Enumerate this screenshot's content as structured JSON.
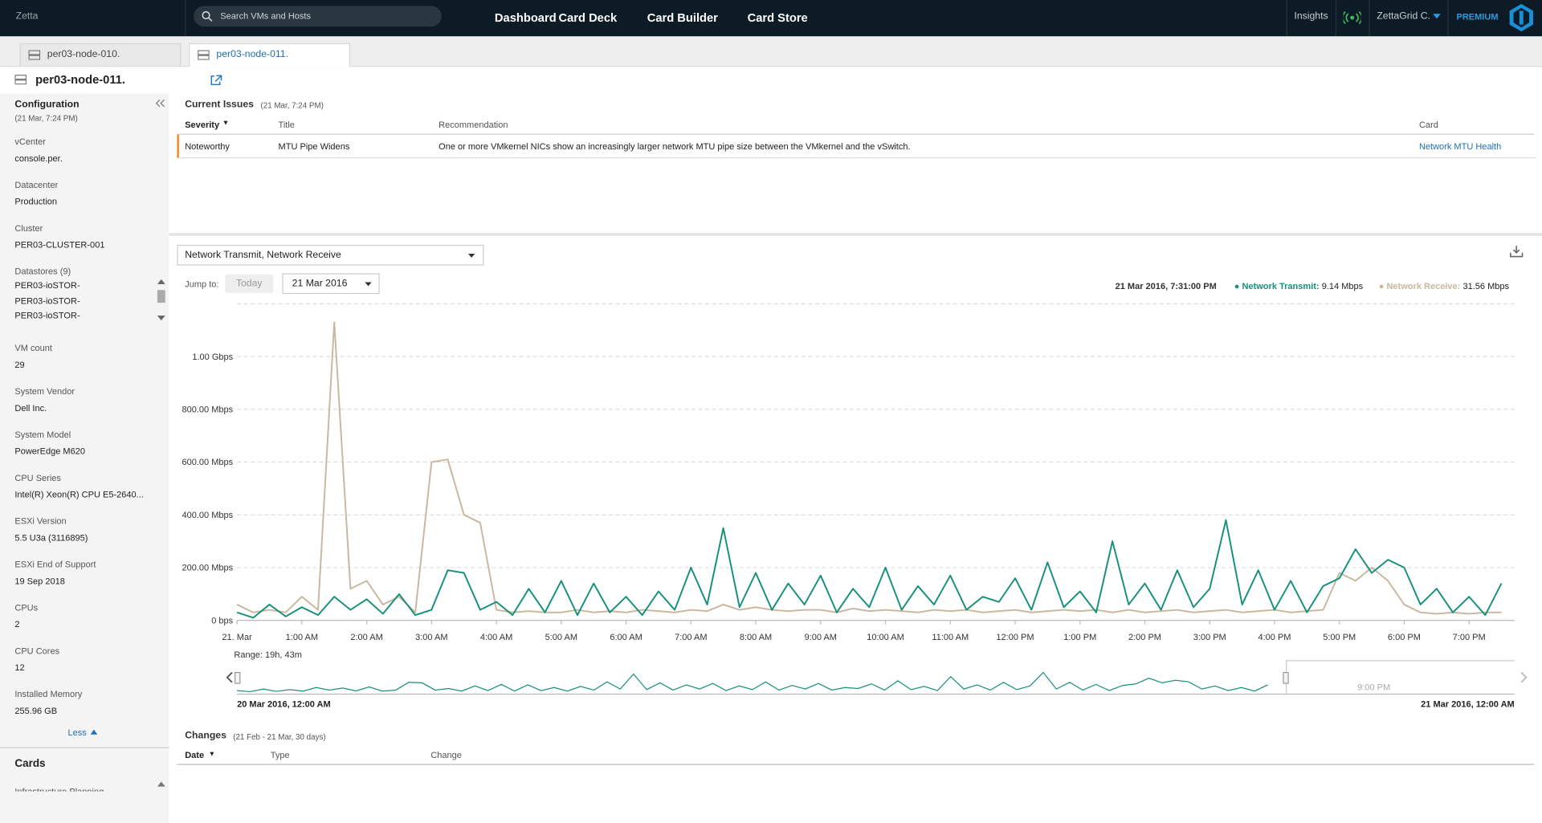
{
  "nav": {
    "brand": "Zetta",
    "search": "Search VMs and Hosts",
    "links": [
      "Dashboard",
      "Card Deck",
      "Card Builder",
      "Card Store"
    ],
    "insights": "Insights",
    "user": "ZettaGrid C.",
    "plan": "PREMIUM"
  },
  "tabs": [
    "per03-node-010.",
    "per03-node-011."
  ],
  "host": "per03-node-011.",
  "sidebar": {
    "title": "Configuration",
    "timestamp": "(21 Mar, 7:24 PM)",
    "fields": [
      {
        "label": "vCenter",
        "value": "console.per."
      },
      {
        "label": "Datacenter",
        "value": "Production"
      },
      {
        "label": "Cluster",
        "value": "PER03-CLUSTER-001"
      },
      {
        "label": "Datastores (9)",
        "items": [
          "PER03-ioSTOR-",
          "PER03-ioSTOR-",
          "PER03-ioSTOR-"
        ]
      },
      {
        "label": "VM count",
        "value": "29"
      },
      {
        "label": "System Vendor",
        "value": "Dell Inc."
      },
      {
        "label": "System Model",
        "value": "PowerEdge M620"
      },
      {
        "label": "CPU Series",
        "value": "Intel(R) Xeon(R) CPU E5-2640..."
      },
      {
        "label": "ESXi Version",
        "value": "5.5 U3a (3116895)"
      },
      {
        "label": "ESXi End of Support",
        "value": "19 Sep 2018"
      },
      {
        "label": "CPUs",
        "value": "2"
      },
      {
        "label": "CPU Cores",
        "value": "12"
      },
      {
        "label": "Installed Memory",
        "value": "255.96 GB"
      }
    ],
    "less": "Less",
    "cards_title": "Cards",
    "cards_item": "Infrastructure Planning"
  },
  "issues": {
    "title": "Current Issues",
    "timestamp": "(21 Mar, 7:24 PM)",
    "columns": [
      "Severity",
      "Title",
      "Recommendation",
      "Card"
    ],
    "rows": [
      [
        "Noteworthy",
        "MTU Pipe Widens",
        "One or more VMkernel NICs show an increasingly larger network MTU pipe size between the VMkernel and the vSwitch.",
        "Network MTU Health"
      ]
    ]
  },
  "metric_select": "Network Transmit, Network Receive",
  "jump_to": "Jump to:",
  "today": "Today",
  "date": "21 Mar 2016",
  "tooltip": {
    "time": "21 Mar 2016, 7:31:00 PM",
    "items": [
      {
        "label": "Network Transmit:",
        "value": "9.14 Mbps"
      },
      {
        "label": "Network Receive:",
        "value": "31.56 Mbps"
      }
    ]
  },
  "navigator": {
    "range": "Range: 19h, 43m",
    "start": "20 Mar 2016, 12:00 AM",
    "end": "21 Mar 2016, 12:00 AM",
    "tick": "9:00 PM"
  },
  "changes": {
    "title": "Changes",
    "timestamp": "(21 Feb - 21 Mar, 30 days)",
    "columns": [
      "Date",
      "Type",
      "Change"
    ]
  },
  "chart_data": {
    "type": "line",
    "x": [
      0,
      0.25,
      0.5,
      0.75,
      1,
      1.25,
      1.5,
      1.75,
      2,
      2.25,
      2.5,
      2.75,
      3,
      3.25,
      3.5,
      3.75,
      4,
      4.25,
      4.5,
      4.75,
      5,
      5.25,
      5.5,
      5.75,
      6,
      6.25,
      6.5,
      6.75,
      7,
      7.25,
      7.5,
      7.75,
      8,
      8.25,
      8.5,
      8.75,
      9,
      9.25,
      9.5,
      9.75,
      10,
      10.25,
      10.5,
      10.75,
      11,
      11.25,
      11.5,
      11.75,
      12,
      12.25,
      12.5,
      12.75,
      13,
      13.25,
      13.5,
      13.75,
      14,
      14.25,
      14.5,
      14.75,
      15,
      15.25,
      15.5,
      15.75,
      16,
      16.25,
      16.5,
      16.75,
      17,
      17.25,
      17.5,
      17.75,
      18,
      18.25,
      18.5,
      18.75,
      19,
      19.25,
      19.5
    ],
    "series": [
      {
        "name": "Network Transmit",
        "color": "#17917a",
        "values": [
          30,
          10,
          60,
          15,
          50,
          20,
          90,
          40,
          80,
          25,
          100,
          20,
          40,
          190,
          180,
          40,
          70,
          20,
          120,
          30,
          150,
          20,
          140,
          30,
          90,
          20,
          110,
          40,
          200,
          60,
          350,
          50,
          180,
          40,
          140,
          60,
          170,
          30,
          120,
          50,
          200,
          40,
          130,
          60,
          170,
          40,
          90,
          70,
          160,
          40,
          220,
          50,
          110,
          30,
          300,
          60,
          140,
          40,
          190,
          50,
          120,
          380,
          60,
          190,
          40,
          150,
          30,
          130,
          160,
          270,
          180,
          230,
          200,
          60,
          120,
          30,
          90,
          20,
          140
        ]
      },
      {
        "name": "Network Receive",
        "color": "#c9b79f",
        "values": [
          60,
          30,
          40,
          30,
          90,
          40,
          1130,
          120,
          150,
          60,
          90,
          30,
          600,
          610,
          400,
          370,
          40,
          30,
          35,
          30,
          30,
          40,
          30,
          35,
          30,
          40,
          35,
          30,
          40,
          35,
          60,
          40,
          50,
          40,
          35,
          40,
          40,
          30,
          45,
          35,
          40,
          35,
          30,
          40,
          35,
          40,
          30,
          35,
          40,
          30,
          35,
          40,
          35,
          40,
          30,
          40,
          30,
          35,
          40,
          30,
          35,
          40,
          30,
          35,
          40,
          30,
          35,
          40,
          180,
          150,
          200,
          150,
          60,
          30,
          25,
          30,
          25,
          30,
          30
        ]
      }
    ],
    "xlim": [
      0,
      19.7
    ],
    "xticks": [
      {
        "value": 0,
        "label": "21. Mar"
      },
      {
        "value": 1,
        "label": "1:00 AM"
      },
      {
        "value": 2,
        "label": "2:00 AM"
      },
      {
        "value": 3,
        "label": "3:00 AM"
      },
      {
        "value": 4,
        "label": "4:00 AM"
      },
      {
        "value": 5,
        "label": "5:00 AM"
      },
      {
        "value": 6,
        "label": "6:00 AM"
      },
      {
        "value": 7,
        "label": "7:00 AM"
      },
      {
        "value": 8,
        "label": "8:00 AM"
      },
      {
        "value": 9,
        "label": "9:00 AM"
      },
      {
        "value": 10,
        "label": "10:00 AM"
      },
      {
        "value": 11,
        "label": "11:00 AM"
      },
      {
        "value": 12,
        "label": "12:00 PM"
      },
      {
        "value": 13,
        "label": "1:00 PM"
      },
      {
        "value": 14,
        "label": "2:00 PM"
      },
      {
        "value": 15,
        "label": "3:00 PM"
      },
      {
        "value": 16,
        "label": "4:00 PM"
      },
      {
        "value": 17,
        "label": "5:00 PM"
      },
      {
        "value": 18,
        "label": "6:00 PM"
      },
      {
        "value": 19,
        "label": "7:00 PM"
      }
    ],
    "ylim": [
      0,
      1200
    ],
    "yticks": [
      {
        "value": 0,
        "label": "0 bps"
      },
      {
        "value": 200,
        "label": "200.00 Mbps"
      },
      {
        "value": 400,
        "label": "400.00 Mbps"
      },
      {
        "value": 600,
        "label": "600.00 Mbps"
      },
      {
        "value": 800,
        "label": "800.00 Mbps"
      },
      {
        "value": 1000,
        "label": "1.00 Gbps"
      }
    ],
    "grid": true
  }
}
